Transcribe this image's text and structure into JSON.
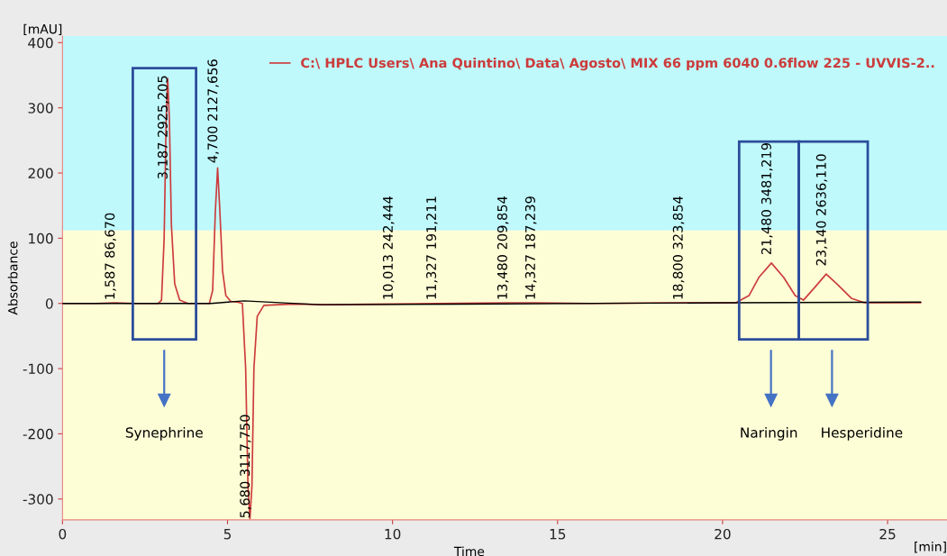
{
  "chart_data": {
    "type": "line",
    "xlabel": "Time",
    "ylabel": "Absorbance",
    "xlim": [
      0,
      26.8
    ],
    "ylim": [
      -332,
      410
    ],
    "xticks": [
      0,
      5,
      10,
      15,
      20,
      25
    ],
    "yticks": [
      -300,
      -200,
      -100,
      0,
      100,
      200,
      300,
      400
    ],
    "grid": false,
    "legend": "top right",
    "marker": "none",
    "line_style": "solid",
    "bands": [
      {
        "axis": "y",
        "from": 112,
        "to": 410,
        "color": "#bff9fb"
      },
      {
        "axis": "y",
        "from": -332,
        "to": 112,
        "color": "#fdfdd6"
      }
    ],
    "series": [
      {
        "name": "C:\\ HPLC Users\\ Ana Quintino\\ Data\\ Agosto\\ MIX 66 ppm 6040 0.6flow 225 - UVVIS-2..",
        "color": "#cc3b3b",
        "x": [
          0,
          1.0,
          1.587,
          2.2,
          2.9,
          3.0,
          3.08,
          3.14,
          3.187,
          3.24,
          3.3,
          3.4,
          3.55,
          3.8,
          4.45,
          4.55,
          4.63,
          4.7,
          4.76,
          4.85,
          4.95,
          5.1,
          5.3,
          5.45,
          5.55,
          5.62,
          5.68,
          5.74,
          5.8,
          5.9,
          6.1,
          7.0,
          8.0,
          10.013,
          11.327,
          13.48,
          14.327,
          16.0,
          18.8,
          20.4,
          20.8,
          21.1,
          21.48,
          21.85,
          22.2,
          22.45,
          22.8,
          23.14,
          23.5,
          23.9,
          24.3,
          26.0
        ],
        "values": [
          0,
          0,
          1,
          0,
          0,
          5,
          100,
          280,
          345,
          280,
          120,
          30,
          5,
          0,
          0,
          20,
          140,
          208,
          150,
          50,
          12,
          3,
          2,
          0,
          -100,
          -280,
          -330,
          -280,
          -100,
          -20,
          -3,
          -1,
          -2,
          -1,
          0,
          1,
          1,
          0,
          1,
          1,
          12,
          40,
          62,
          40,
          12,
          5,
          25,
          45,
          28,
          8,
          1,
          1
        ]
      },
      {
        "color": "#000000",
        "x": [
          0,
          2.5,
          4.5,
          5.5,
          7.8,
          12,
          20,
          26
        ],
        "values": [
          0,
          0,
          0,
          4,
          -2,
          -1,
          1,
          2
        ]
      }
    ],
    "annotations": [
      "[mAU]",
      "[min]",
      {
        "text": "1,587 86,670",
        "x": 1.587,
        "y": 5
      },
      {
        "text": "3,187 2925,205",
        "x": 3.187,
        "y": 190
      },
      {
        "text": "4,700 2127,656",
        "x": 4.7,
        "y": 215
      },
      {
        "text": "5,680 3117,750",
        "x": 5.68,
        "y": -330
      },
      {
        "text": "10,013 242,444",
        "x": 10.013,
        "y": 5
      },
      {
        "text": "11,327 191,211",
        "x": 11.327,
        "y": 5
      },
      {
        "text": "13,480 209,854",
        "x": 13.48,
        "y": 5
      },
      {
        "text": "14,327 187,239",
        "x": 14.327,
        "y": 5
      },
      {
        "text": "18,800 323,854",
        "x": 18.8,
        "y": 5
      },
      {
        "text": "21,480 3481,219",
        "x": 21.48,
        "y": 62
      },
      {
        "text": "23,140 2636,110",
        "x": 23.14,
        "y": 45
      },
      "Synephrine",
      "Naringin",
      "Hesperidine"
    ]
  }
}
